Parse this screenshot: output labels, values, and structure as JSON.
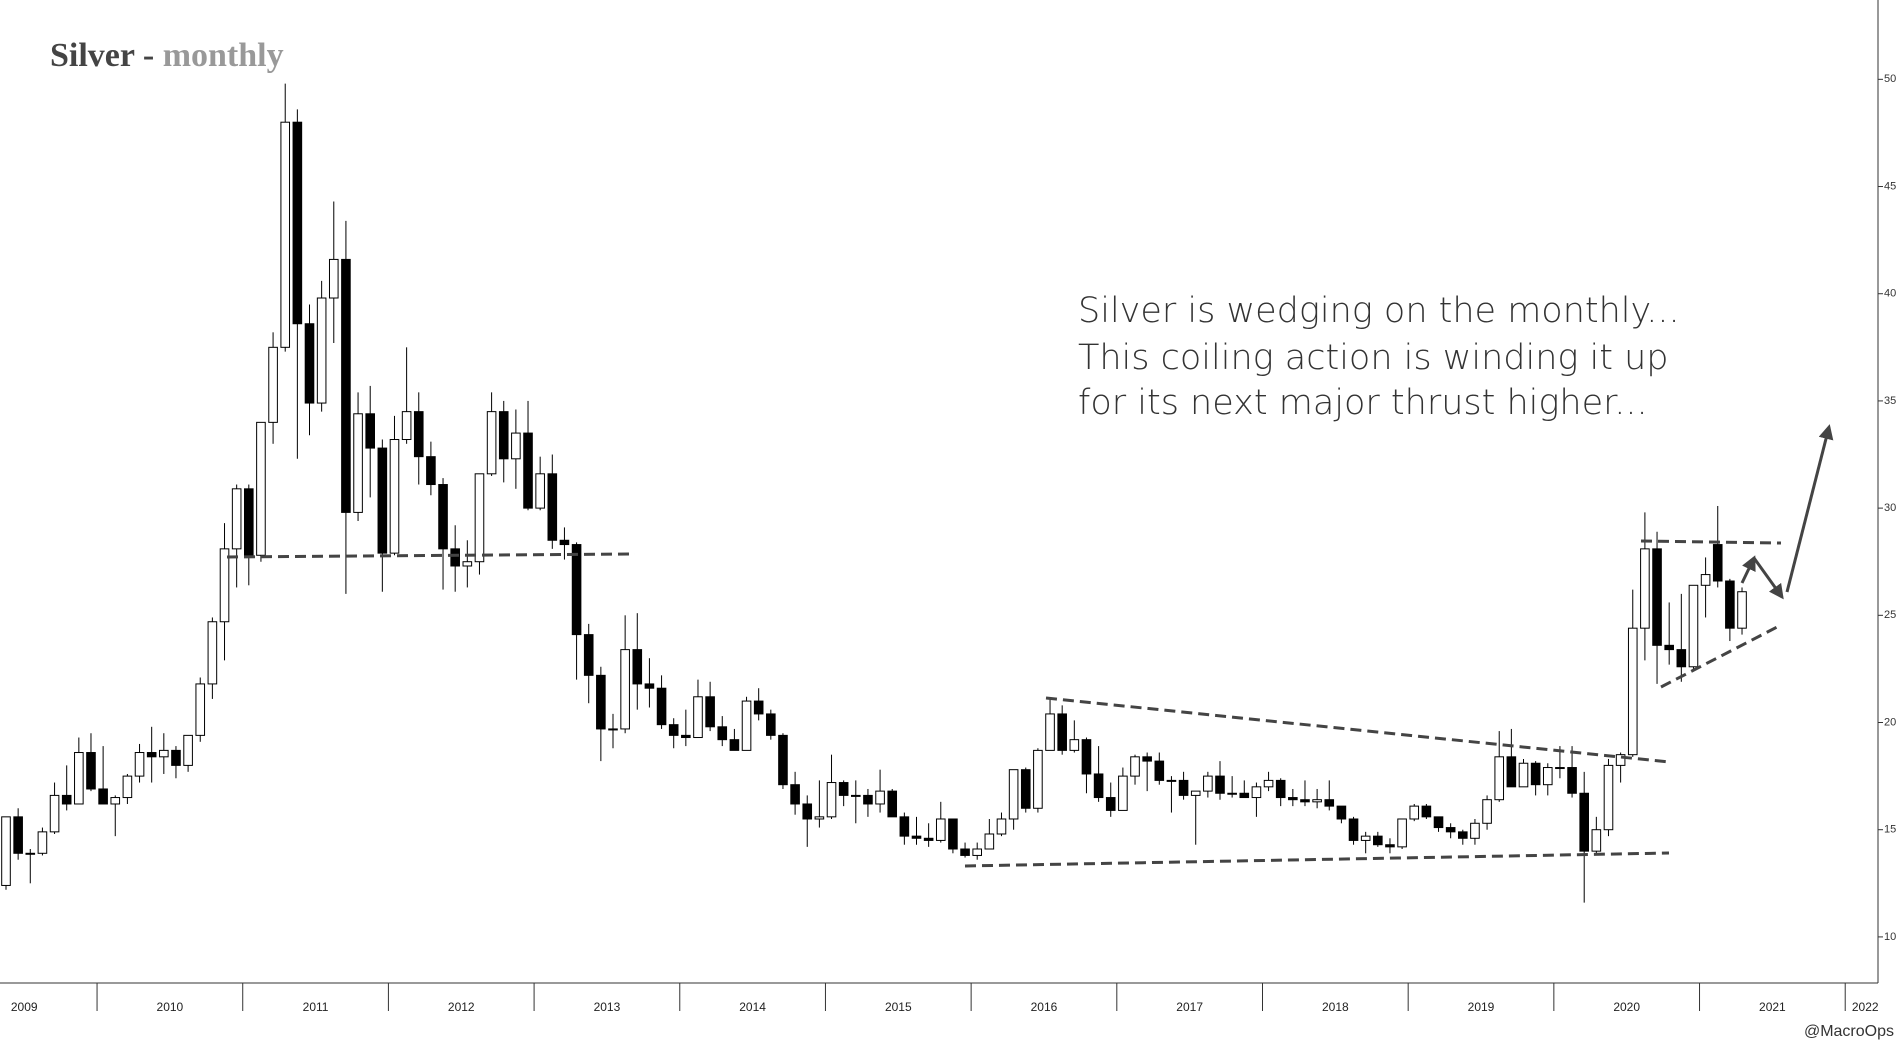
{
  "chart_data": {
    "type": "candlestick",
    "title_parts": [
      "Silver -",
      "monthly"
    ],
    "annotation": [
      "Silver is wedging on the monthly...",
      "This coiling action is winding it up",
      "for its next major thrust higher..."
    ],
    "credit": "@MacroOps",
    "year_labels": [
      "2009",
      "2010",
      "2011",
      "2012",
      "2013",
      "2014",
      "2015",
      "2016",
      "2017",
      "2018",
      "2019",
      "2020",
      "2021",
      "2022"
    ],
    "categories": [
      "2009",
      "2009",
      "2009",
      "2009",
      "2009",
      "2009",
      "2009",
      "2009",
      "2010",
      "2010",
      "2010",
      "2010",
      "2010",
      "2010",
      "2010",
      "2010",
      "2010",
      "2010",
      "2010",
      "2010",
      "2011",
      "2011",
      "2011",
      "2011",
      "2011",
      "2011",
      "2011",
      "2011",
      "2011",
      "2011",
      "2011",
      "2011",
      "2012",
      "2012",
      "2012",
      "2012",
      "2012",
      "2012",
      "2012",
      "2012",
      "2012",
      "2012",
      "2012",
      "2012",
      "2013",
      "2013",
      "2013",
      "2013",
      "2013",
      "2013",
      "2013",
      "2013",
      "2013",
      "2013",
      "2013",
      "2013",
      "2014",
      "2014",
      "2014",
      "2014",
      "2014",
      "2014",
      "2014",
      "2014",
      "2014",
      "2014",
      "2014",
      "2014",
      "2015",
      "2015",
      "2015",
      "2015",
      "2015",
      "2015",
      "2015",
      "2015",
      "2015",
      "2015",
      "2015",
      "2015",
      "2016",
      "2016",
      "2016",
      "2016",
      "2016",
      "2016",
      "2016",
      "2016",
      "2016",
      "2016",
      "2016",
      "2016",
      "2017",
      "2017",
      "2017",
      "2017",
      "2017",
      "2017",
      "2017",
      "2017",
      "2017",
      "2017",
      "2017",
      "2017",
      "2018",
      "2018",
      "2018",
      "2018",
      "2018",
      "2018",
      "2018",
      "2018",
      "2018",
      "2018",
      "2018",
      "2018",
      "2019",
      "2019",
      "2019",
      "2019",
      "2019",
      "2019",
      "2019",
      "2019",
      "2019",
      "2019",
      "2019",
      "2019",
      "2020",
      "2020",
      "2020",
      "2020",
      "2020",
      "2020",
      "2020",
      "2020",
      "2020",
      "2020",
      "2020",
      "2020",
      "2021",
      "2021",
      "2021",
      "2021"
    ],
    "ohlc": [
      [
        12.4,
        15.6,
        12.2,
        15.6
      ],
      [
        15.6,
        16.0,
        13.6,
        13.9
      ],
      [
        13.9,
        14.1,
        12.5,
        13.9
      ],
      [
        13.9,
        15.1,
        13.8,
        14.9
      ],
      [
        14.9,
        17.2,
        14.8,
        16.6
      ],
      [
        16.6,
        18.0,
        15.9,
        16.2
      ],
      [
        16.2,
        19.3,
        16.2,
        18.6
      ],
      [
        18.6,
        19.5,
        16.8,
        16.9
      ],
      [
        16.9,
        18.9,
        16.2,
        16.2
      ],
      [
        16.2,
        16.6,
        14.7,
        16.5
      ],
      [
        16.5,
        17.6,
        16.2,
        17.5
      ],
      [
        17.5,
        19.0,
        17.2,
        18.6
      ],
      [
        18.6,
        19.8,
        17.2,
        18.4
      ],
      [
        18.4,
        19.5,
        17.6,
        18.7
      ],
      [
        18.7,
        18.9,
        17.4,
        18.0
      ],
      [
        18.0,
        19.4,
        17.7,
        19.4
      ],
      [
        19.4,
        22.1,
        19.1,
        21.8
      ],
      [
        21.8,
        24.9,
        21.1,
        24.7
      ],
      [
        24.7,
        29.3,
        22.9,
        28.1
      ],
      [
        28.1,
        31.1,
        26.3,
        30.9
      ],
      [
        30.9,
        31.1,
        26.4,
        27.8
      ],
      [
        27.8,
        34.0,
        27.5,
        34.0
      ],
      [
        34.0,
        38.2,
        33.0,
        37.5
      ],
      [
        37.5,
        49.8,
        37.3,
        48.0
      ],
      [
        48.0,
        48.6,
        32.3,
        38.6
      ],
      [
        38.6,
        39.5,
        33.4,
        34.9
      ],
      [
        34.9,
        40.6,
        34.5,
        39.8
      ],
      [
        39.8,
        44.3,
        37.7,
        41.6
      ],
      [
        41.6,
        43.4,
        26.0,
        29.8
      ],
      [
        29.8,
        35.4,
        29.4,
        34.4
      ],
      [
        34.4,
        35.7,
        30.5,
        32.8
      ],
      [
        32.8,
        33.2,
        26.1,
        27.9
      ],
      [
        27.9,
        34.3,
        27.8,
        33.2
      ],
      [
        33.2,
        37.5,
        33.0,
        34.5
      ],
      [
        34.5,
        35.4,
        31.1,
        32.4
      ],
      [
        32.4,
        33.1,
        30.6,
        31.1
      ],
      [
        31.1,
        31.4,
        26.2,
        28.1
      ],
      [
        28.1,
        29.2,
        26.1,
        27.3
      ],
      [
        27.3,
        28.5,
        26.3,
        27.5
      ],
      [
        27.5,
        31.5,
        26.9,
        31.6
      ],
      [
        31.6,
        35.4,
        31.5,
        34.5
      ],
      [
        34.5,
        35.0,
        31.2,
        32.3
      ],
      [
        32.3,
        34.6,
        30.9,
        33.5
      ],
      [
        33.5,
        35.0,
        29.9,
        30.0
      ],
      [
        30.0,
        32.4,
        29.9,
        31.6
      ],
      [
        31.6,
        32.5,
        28.1,
        28.5
      ],
      [
        28.5,
        29.1,
        27.6,
        28.3
      ],
      [
        28.3,
        28.4,
        22.0,
        24.1
      ],
      [
        24.1,
        24.6,
        20.9,
        22.2
      ],
      [
        22.2,
        22.6,
        18.2,
        19.7
      ],
      [
        19.7,
        20.4,
        18.8,
        19.7
      ],
      [
        19.7,
        25.0,
        19.5,
        23.4
      ],
      [
        23.4,
        25.1,
        20.6,
        21.8
      ],
      [
        21.8,
        23.0,
        20.7,
        21.6
      ],
      [
        21.6,
        22.2,
        19.7,
        19.9
      ],
      [
        19.9,
        20.2,
        18.8,
        19.4
      ],
      [
        19.4,
        20.6,
        18.9,
        19.3
      ],
      [
        19.3,
        22.0,
        19.3,
        21.2
      ],
      [
        21.2,
        21.9,
        19.6,
        19.8
      ],
      [
        19.8,
        20.3,
        18.9,
        19.2
      ],
      [
        19.2,
        19.7,
        18.7,
        18.7
      ],
      [
        18.7,
        21.2,
        18.7,
        21.0
      ],
      [
        21.0,
        21.6,
        20.1,
        20.4
      ],
      [
        20.4,
        20.6,
        19.2,
        19.4
      ],
      [
        19.4,
        19.5,
        16.9,
        17.1
      ],
      [
        17.1,
        17.7,
        15.7,
        16.2
      ],
      [
        16.2,
        16.6,
        14.2,
        15.5
      ],
      [
        15.5,
        17.3,
        15.1,
        15.6
      ],
      [
        15.6,
        18.5,
        15.5,
        17.2
      ],
      [
        17.2,
        17.3,
        16.1,
        16.6
      ],
      [
        16.6,
        17.3,
        15.3,
        16.6
      ],
      [
        16.6,
        16.9,
        15.6,
        16.2
      ],
      [
        16.2,
        17.8,
        15.8,
        16.8
      ],
      [
        16.8,
        16.9,
        15.6,
        15.6
      ],
      [
        15.6,
        15.8,
        14.3,
        14.7
      ],
      [
        14.7,
        15.6,
        14.3,
        14.6
      ],
      [
        14.6,
        15.3,
        14.2,
        14.5
      ],
      [
        14.5,
        16.3,
        14.4,
        15.5
      ],
      [
        15.5,
        15.5,
        13.9,
        14.1
      ],
      [
        14.1,
        14.4,
        13.7,
        13.8
      ],
      [
        13.8,
        14.4,
        13.6,
        14.1
      ],
      [
        14.1,
        15.5,
        14.1,
        14.8
      ],
      [
        14.8,
        15.8,
        14.7,
        15.5
      ],
      [
        15.5,
        17.8,
        15.0,
        17.8
      ],
      [
        17.8,
        17.9,
        15.8,
        16.0
      ],
      [
        16.0,
        18.8,
        15.8,
        18.7
      ],
      [
        18.7,
        21.1,
        18.7,
        20.4
      ],
      [
        20.4,
        20.8,
        18.5,
        18.7
      ],
      [
        18.7,
        20.1,
        18.6,
        19.2
      ],
      [
        19.2,
        19.3,
        16.7,
        17.6
      ],
      [
        17.6,
        18.9,
        16.3,
        16.5
      ],
      [
        16.5,
        17.2,
        15.6,
        15.9
      ],
      [
        15.9,
        17.9,
        15.9,
        17.5
      ],
      [
        17.5,
        18.5,
        17.1,
        18.4
      ],
      [
        18.4,
        18.6,
        16.8,
        18.2
      ],
      [
        18.2,
        18.6,
        17.1,
        17.3
      ],
      [
        17.3,
        17.5,
        15.8,
        17.3
      ],
      [
        17.3,
        17.7,
        16.4,
        16.6
      ],
      [
        16.6,
        16.8,
        14.3,
        16.8
      ],
      [
        16.8,
        17.7,
        16.5,
        17.5
      ],
      [
        17.5,
        18.2,
        16.4,
        16.7
      ],
      [
        16.7,
        17.5,
        16.5,
        16.7
      ],
      [
        16.7,
        17.3,
        16.5,
        16.5
      ],
      [
        16.5,
        17.2,
        15.6,
        17.0
      ],
      [
        17.0,
        17.7,
        16.8,
        17.3
      ],
      [
        17.3,
        17.4,
        16.1,
        16.5
      ],
      [
        16.5,
        16.9,
        16.1,
        16.4
      ],
      [
        16.4,
        17.3,
        16.1,
        16.3
      ],
      [
        16.3,
        16.9,
        16.0,
        16.4
      ],
      [
        16.4,
        17.3,
        15.9,
        16.1
      ],
      [
        16.1,
        16.1,
        15.3,
        15.5
      ],
      [
        15.5,
        15.6,
        14.3,
        14.5
      ],
      [
        14.5,
        14.9,
        13.9,
        14.7
      ],
      [
        14.7,
        14.9,
        14.2,
        14.3
      ],
      [
        14.3,
        14.6,
        13.9,
        14.2
      ],
      [
        14.2,
        15.5,
        14.1,
        15.5
      ],
      [
        15.5,
        16.2,
        15.4,
        16.1
      ],
      [
        16.1,
        16.2,
        15.5,
        15.6
      ],
      [
        15.6,
        15.6,
        14.9,
        15.1
      ],
      [
        15.1,
        15.3,
        14.6,
        14.9
      ],
      [
        14.9,
        15.0,
        14.3,
        14.6
      ],
      [
        14.6,
        15.5,
        14.3,
        15.3
      ],
      [
        15.3,
        16.6,
        15.0,
        16.4
      ],
      [
        16.4,
        19.6,
        16.3,
        18.4
      ],
      [
        18.4,
        19.7,
        17.0,
        17.0
      ],
      [
        17.0,
        18.3,
        17.0,
        18.1
      ],
      [
        18.1,
        18.2,
        16.6,
        17.1
      ],
      [
        17.1,
        18.1,
        16.6,
        17.9
      ],
      [
        17.9,
        18.9,
        17.4,
        17.9
      ],
      [
        17.9,
        18.9,
        16.5,
        16.7
      ],
      [
        16.7,
        17.7,
        11.6,
        14.0
      ],
      [
        14.0,
        15.6,
        13.9,
        15.0
      ],
      [
        15.0,
        18.3,
        14.7,
        18.0
      ],
      [
        18.0,
        18.6,
        17.2,
        18.5
      ],
      [
        18.5,
        26.2,
        18.4,
        24.4
      ],
      [
        24.4,
        29.8,
        22.9,
        28.1
      ],
      [
        28.1,
        28.9,
        21.8,
        23.6
      ],
      [
        23.6,
        25.6,
        22.7,
        23.4
      ],
      [
        23.4,
        26.0,
        21.9,
        22.6
      ],
      [
        22.6,
        26.4,
        22.5,
        26.4
      ],
      [
        26.4,
        27.7,
        24.9,
        26.9
      ],
      [
        28.3,
        30.1,
        26.3,
        26.6
      ],
      [
        26.6,
        26.7,
        23.8,
        24.4
      ],
      [
        24.4,
        26.3,
        24.1,
        26.1
      ]
    ],
    "up_color": "#ffffff",
    "down_color": "#000000",
    "edge_color": "#000000",
    "ylim": [
      7.85,
      53.7
    ],
    "yticks": [
      10,
      15,
      20,
      25,
      30,
      35,
      40,
      45,
      50
    ]
  }
}
